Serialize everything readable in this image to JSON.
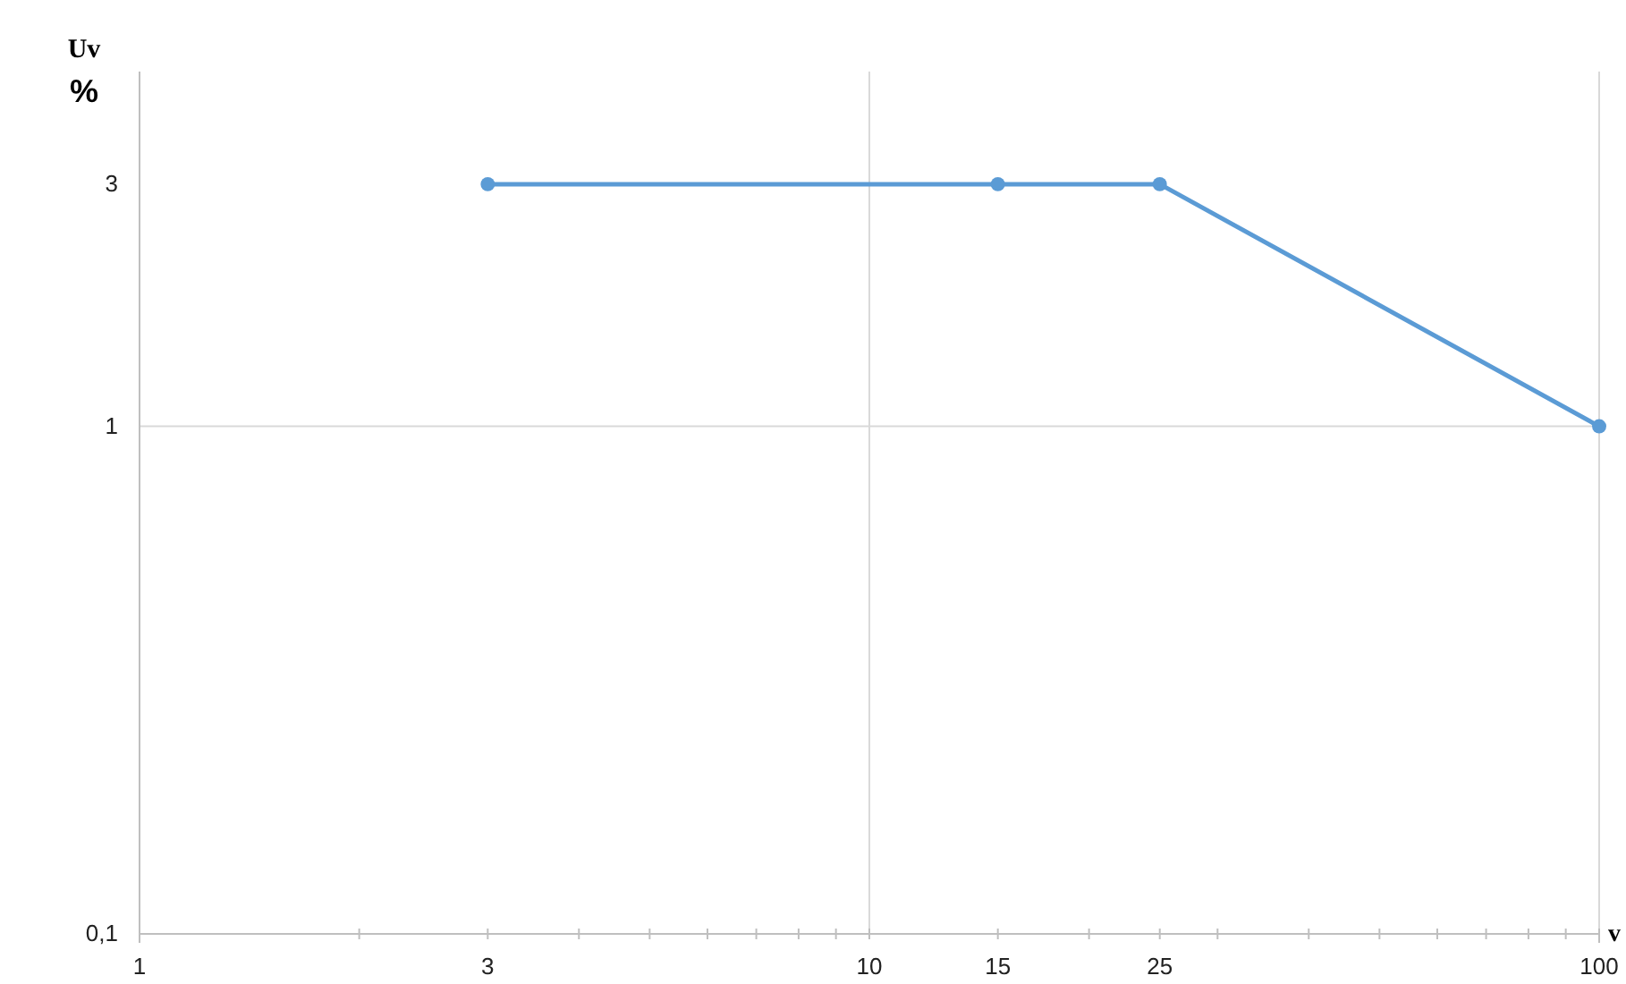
{
  "chart_data": {
    "type": "line",
    "xlabel": "v",
    "ylabel": "Uv\n%",
    "log": "xy",
    "x": [
      3,
      15,
      25,
      100
    ],
    "series": [
      {
        "color": "#5b9bd5",
        "values": [
          3,
          3,
          3,
          1
        ]
      }
    ],
    "marker": "circle",
    "grid": true,
    "xlim": [
      1,
      100
    ],
    "ylim": [
      0.1,
      5
    ],
    "xticks": [
      1,
      {
        "value": 2,
        "label": null
      },
      3,
      {
        "value": 4,
        "label": null
      },
      {
        "value": 5,
        "label": null
      },
      {
        "value": 6,
        "label": null
      },
      {
        "value": 7,
        "label": null
      },
      {
        "value": 8,
        "label": null
      },
      {
        "value": 9,
        "label": null
      },
      10,
      15,
      {
        "value": 20,
        "label": null
      },
      25,
      {
        "value": 30,
        "label": null
      },
      {
        "value": 40,
        "label": null
      },
      {
        "value": 50,
        "label": null
      },
      {
        "value": 60,
        "label": null
      },
      {
        "value": 70,
        "label": null
      },
      {
        "value": 80,
        "label": null
      },
      {
        "value": 90,
        "label": null
      },
      100
    ],
    "yticks": [
      {
        "value": 0.1,
        "label": "0,1"
      },
      1,
      3
    ]
  }
}
